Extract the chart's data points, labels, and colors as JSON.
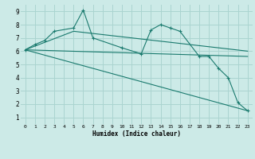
{
  "bg_color": "#cceae7",
  "grid_color": "#aad4d0",
  "line_color": "#1a7a6e",
  "xlabel": "Humidex (Indice chaleur)",
  "xlim": [
    -0.5,
    23.5
  ],
  "ylim": [
    0.5,
    9.5
  ],
  "yticks": [
    1,
    2,
    3,
    4,
    5,
    6,
    7,
    8,
    9
  ],
  "xticks": [
    0,
    1,
    2,
    3,
    4,
    5,
    6,
    7,
    8,
    9,
    10,
    11,
    12,
    13,
    14,
    15,
    16,
    17,
    18,
    19,
    20,
    21,
    22,
    23
  ],
  "series_with_markers": {
    "x": [
      0,
      1,
      2,
      3,
      5,
      6,
      7,
      10,
      12,
      13,
      14,
      15,
      16,
      18,
      19,
      20,
      21,
      22,
      23
    ],
    "y": [
      6.1,
      6.5,
      6.8,
      7.5,
      7.75,
      9.1,
      7.0,
      6.25,
      5.8,
      7.6,
      8.0,
      7.75,
      7.5,
      5.6,
      5.6,
      4.7,
      4.0,
      2.1,
      1.5
    ]
  },
  "straight_lines": [
    {
      "x": [
        0,
        5,
        23
      ],
      "y": [
        6.1,
        7.5,
        6.0
      ]
    },
    {
      "x": [
        0,
        23
      ],
      "y": [
        6.1,
        5.6
      ]
    },
    {
      "x": [
        0,
        23
      ],
      "y": [
        6.1,
        1.5
      ]
    }
  ]
}
